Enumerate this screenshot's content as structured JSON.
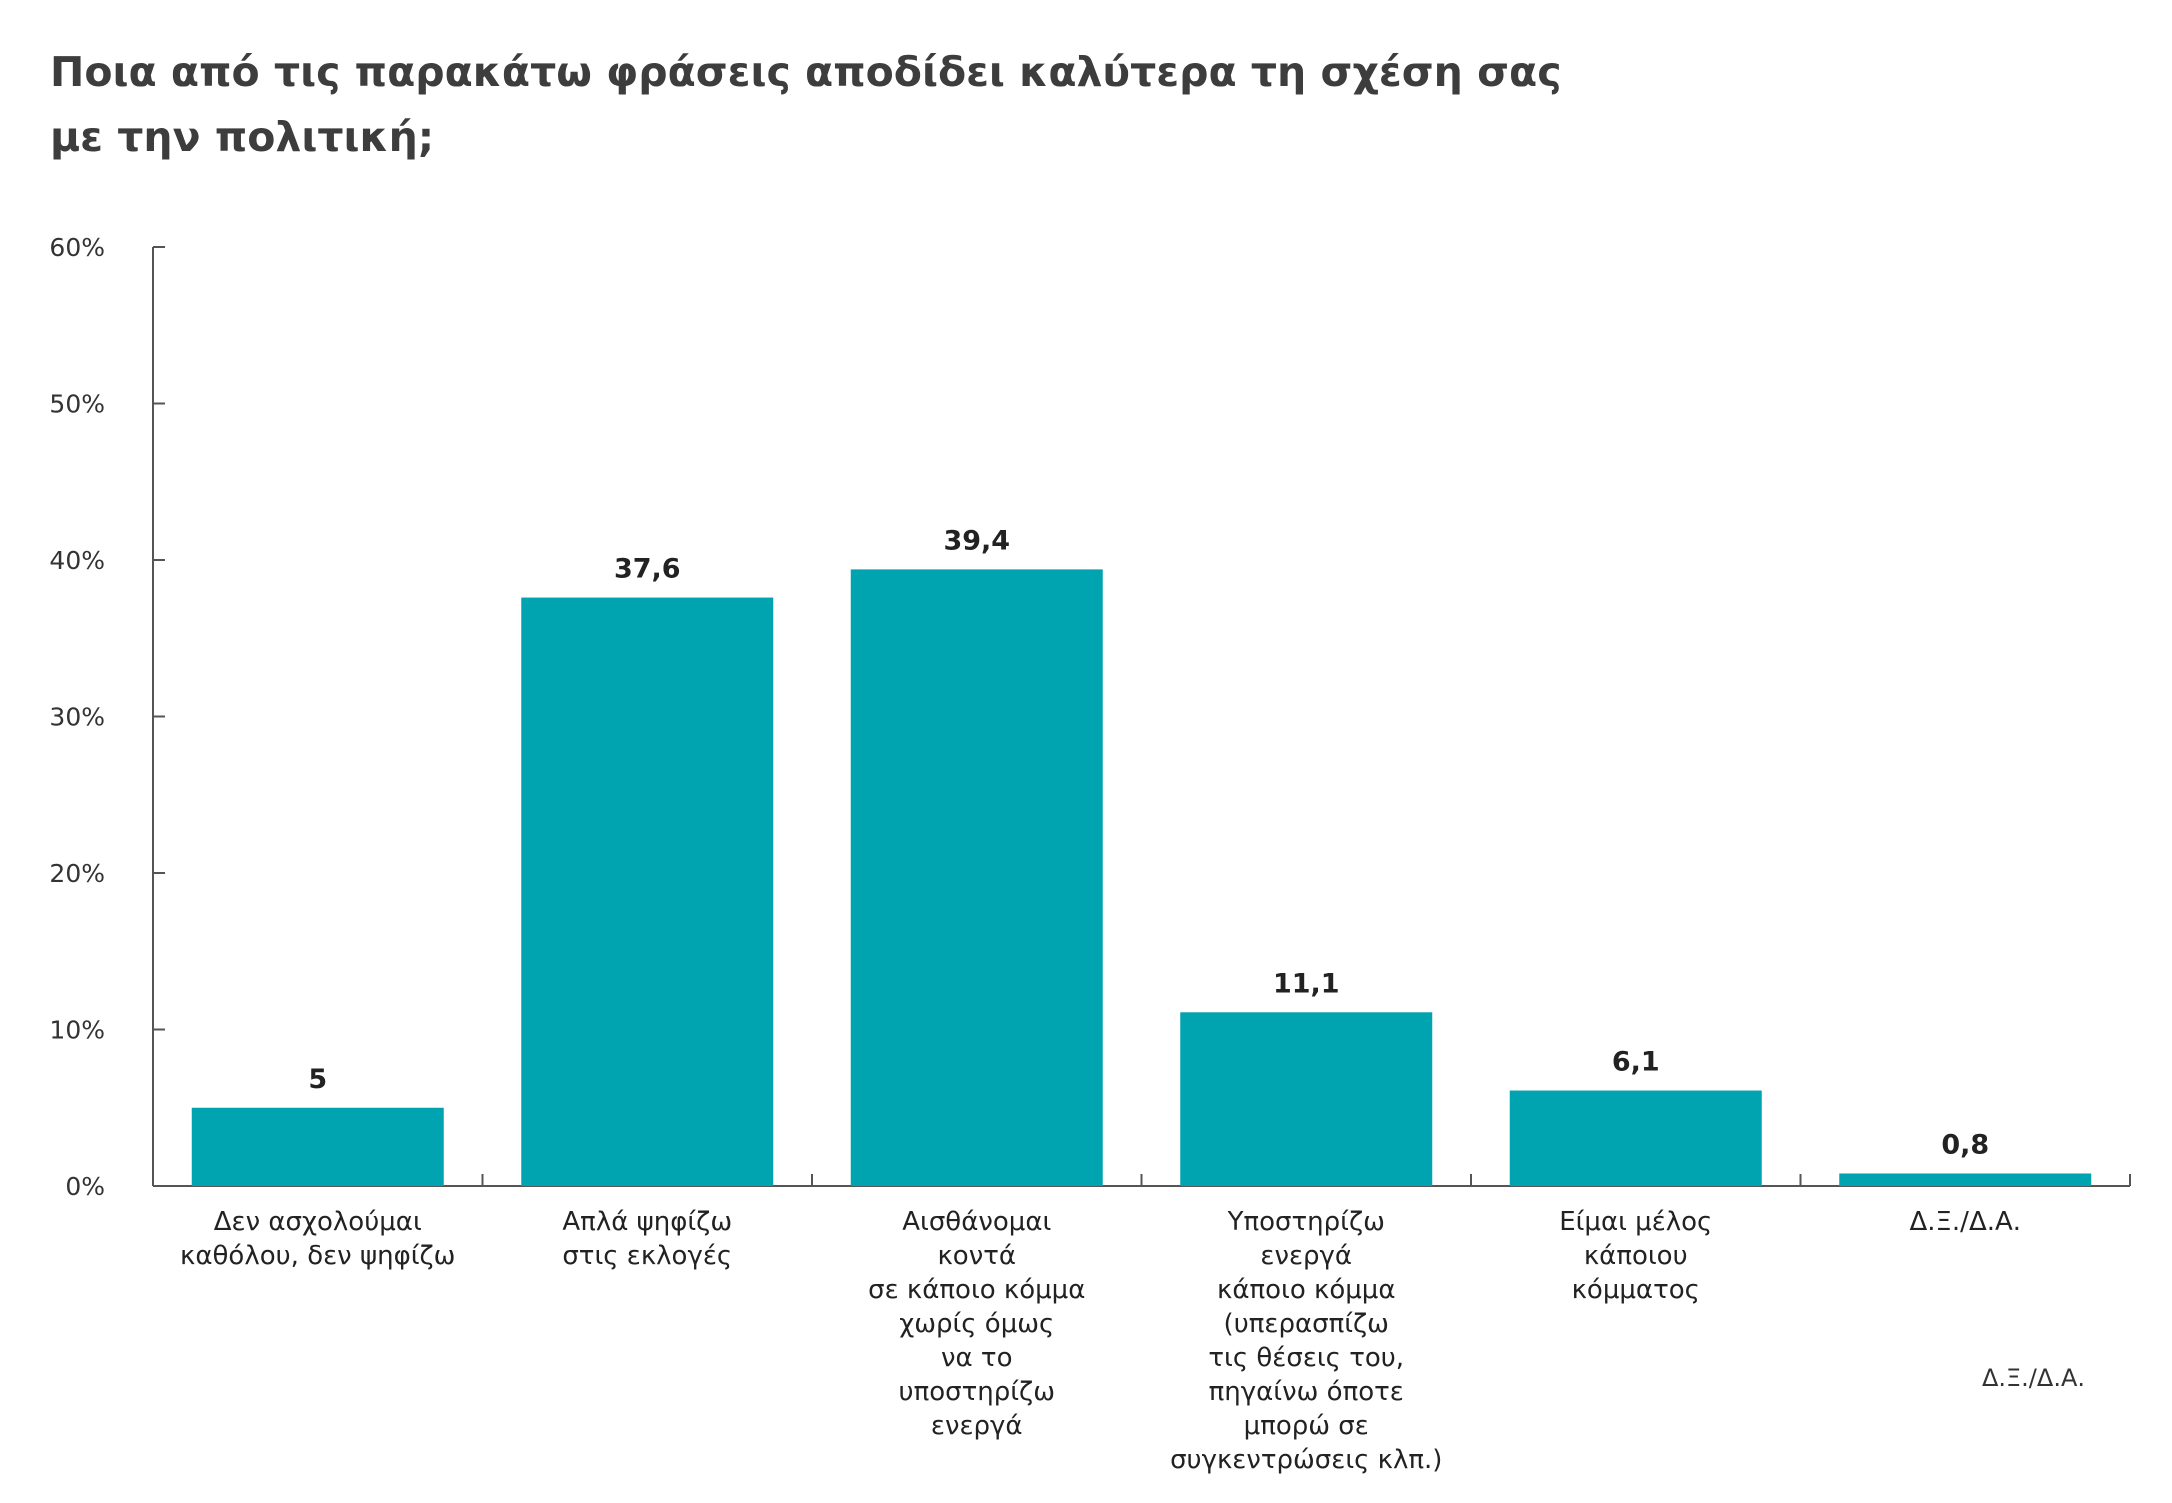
{
  "title_lines": [
    "Ποια από τις παρακάτω φράσεις αποδίδει καλύτερα τη σχέση σας",
    "με την πολιτική;"
  ],
  "footnote": "Δ.Ξ./Δ.Α.",
  "colors": {
    "bar": "#00a3b0",
    "axis": "#555555",
    "text": "#222222"
  },
  "chart_data": {
    "type": "bar",
    "title": "Ποια από τις παρακάτω φράσεις αποδίδει καλύτερα τη σχέση σας με την πολιτική;",
    "categories": [
      [
        "Δεν ασχολούμαι",
        "καθόλου, δεν ψηφίζω"
      ],
      [
        "Απλά ψηφίζω",
        "στις εκλογές"
      ],
      [
        "Αισθάνομαι",
        "κοντά",
        "σε κάποιο κόμμα",
        "χωρίς όμως",
        "να το",
        "υποστηρίζω",
        "ενεργά"
      ],
      [
        "Υποστηρίζω",
        "ενεργά",
        "κάποιο κόμμα",
        "(υπερασπίζω",
        "τις θέσεις του,",
        "πηγαίνω όποτε",
        "μπορώ σε",
        "συγκεντρώσεις κλπ.)"
      ],
      [
        "Είμαι μέλος",
        "κάποιου",
        "κόμματος"
      ],
      [
        "Δ.Ξ./Δ.Α."
      ]
    ],
    "values": [
      5,
      37.6,
      39.4,
      11.1,
      6.1,
      0.8
    ],
    "value_labels": [
      "5",
      "37,6",
      "39,4",
      "11,1",
      "6,1",
      "0,8"
    ],
    "yticks": [
      "0%",
      "10%",
      "20%",
      "30%",
      "40%",
      "50%",
      "60%"
    ],
    "ylim": [
      0,
      60
    ],
    "xlabel": "",
    "ylabel": "",
    "grid": false,
    "legend": "none"
  }
}
